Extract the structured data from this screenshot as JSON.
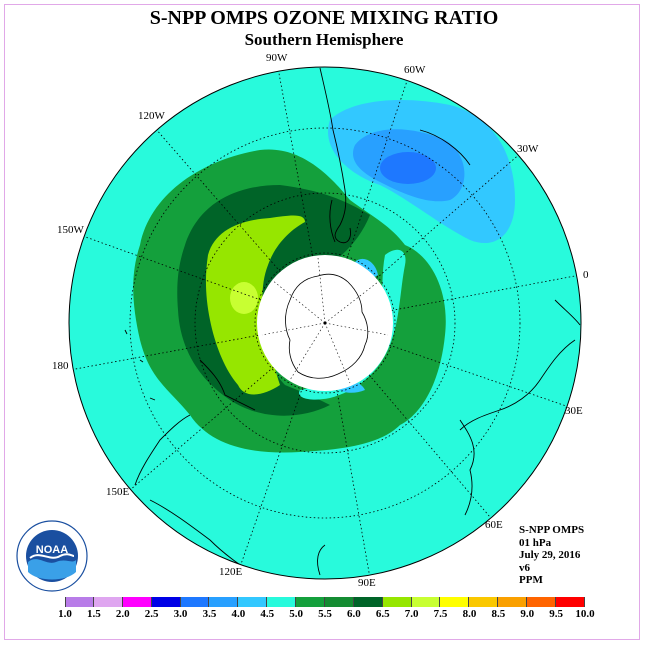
{
  "title": "S-NPP OMPS OZONE MIXING RATIO",
  "subtitle": "Southern Hemisphere",
  "longitude_labels": {
    "lon_90w": "90W",
    "lon_60w": "60W",
    "lon_30w": "30W",
    "lon_120w": "120W",
    "lon_150w": "150W",
    "lon_0": "0",
    "lon_180": "180",
    "lon_30e": "30E",
    "lon_150e": "150E",
    "lon_60e": "60E",
    "lon_120e": "120E",
    "lon_90e": "90E"
  },
  "info": {
    "instrument": "S-NPP OMPS",
    "level": "01 hPa",
    "date": "July 29, 2016",
    "version": "v6",
    "units": "PPM"
  },
  "logo": {
    "text": "NOAA",
    "icon": "noaa-logo-icon"
  },
  "colorbar": {
    "ticks": [
      "1.0",
      "1.5",
      "2.0",
      "2.5",
      "3.0",
      "3.5",
      "4.0",
      "4.5",
      "5.0",
      "5.5",
      "6.0",
      "6.5",
      "7.0",
      "7.5",
      "8.0",
      "8.5",
      "9.0",
      "9.5",
      "10.0"
    ],
    "colors": [
      "#b87ce8",
      "#dfa6f0",
      "#ff00ff",
      "#0000e6",
      "#1e78ff",
      "#28a0ff",
      "#32c8ff",
      "#28fadc",
      "#14a03c",
      "#148c32",
      "#006428",
      "#96e600",
      "#c8ff32",
      "#ffff00",
      "#fac800",
      "#faa000",
      "#ff6400",
      "#ff0000",
      "#8c5a3c"
    ]
  },
  "map_colors": {
    "background": "#28fadc",
    "dark_green": "#0a6e2a",
    "mid_green": "#148c32",
    "darker_green": "#006428",
    "light_green": "#96e600",
    "blue_light": "#32c8ff",
    "blue_mid": "#28a0ff",
    "blue_dark": "#1e78ff",
    "pole_cap": "#ffffff"
  }
}
